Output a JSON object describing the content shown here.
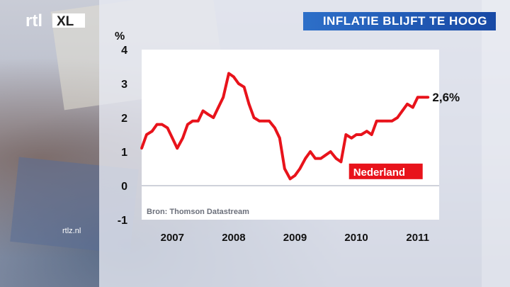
{
  "header": {
    "title": "INFLATIE BLIJFT TE HOOG"
  },
  "logo": {
    "text": "rtl XL",
    "icon": "rtlxl-logo-icon"
  },
  "footer": {
    "site": "rtlz.nl"
  },
  "colors": {
    "line": "#e8131b",
    "title_bar": "#1f58b5",
    "plot_bg": "#ffffff"
  },
  "chart_data": {
    "type": "line",
    "title": "INFLATIE BLIJFT TE HOOG",
    "ylabel": "%",
    "xlabel": "",
    "ylim": [
      -1,
      4
    ],
    "yticks": [
      -1,
      0,
      1,
      2,
      3,
      4
    ],
    "xlim": [
      2007,
      2011.85
    ],
    "xticks": [
      "2007",
      "2008",
      "2009",
      "2010",
      "2011"
    ],
    "grid": false,
    "source": "Bron: Thomson Datastream",
    "end_label": "2,6%",
    "series": [
      {
        "name": "Nederland",
        "x": [
          2007.0,
          2007.08,
          2007.17,
          2007.25,
          2007.33,
          2007.42,
          2007.5,
          2007.58,
          2007.67,
          2007.75,
          2007.83,
          2007.92,
          2008.0,
          2008.08,
          2008.17,
          2008.25,
          2008.33,
          2008.42,
          2008.5,
          2008.58,
          2008.67,
          2008.75,
          2008.83,
          2008.92,
          2009.0,
          2009.08,
          2009.17,
          2009.25,
          2009.33,
          2009.42,
          2009.5,
          2009.58,
          2009.67,
          2009.75,
          2009.83,
          2009.92,
          2010.0,
          2010.08,
          2010.17,
          2010.25,
          2010.33,
          2010.42,
          2010.5,
          2010.58,
          2010.67,
          2010.75,
          2010.83,
          2010.92,
          2011.0,
          2011.08,
          2011.17,
          2011.25,
          2011.33,
          2011.42,
          2011.5,
          2011.58,
          2011.67
        ],
        "y": [
          1.1,
          1.5,
          1.6,
          1.8,
          1.8,
          1.7,
          1.4,
          1.1,
          1.4,
          1.8,
          1.9,
          1.9,
          2.2,
          2.1,
          2.0,
          2.3,
          2.6,
          3.3,
          3.2,
          3.0,
          2.9,
          2.4,
          2.0,
          1.9,
          1.9,
          1.9,
          1.7,
          1.4,
          0.5,
          0.2,
          0.3,
          0.5,
          0.8,
          1.0,
          0.8,
          0.8,
          0.9,
          1.0,
          0.8,
          0.7,
          1.5,
          1.4,
          1.5,
          1.5,
          1.6,
          1.5,
          1.9,
          1.9,
          1.9,
          1.9,
          2.0,
          2.2,
          2.4,
          2.3,
          2.6,
          2.6,
          2.6
        ]
      }
    ]
  }
}
